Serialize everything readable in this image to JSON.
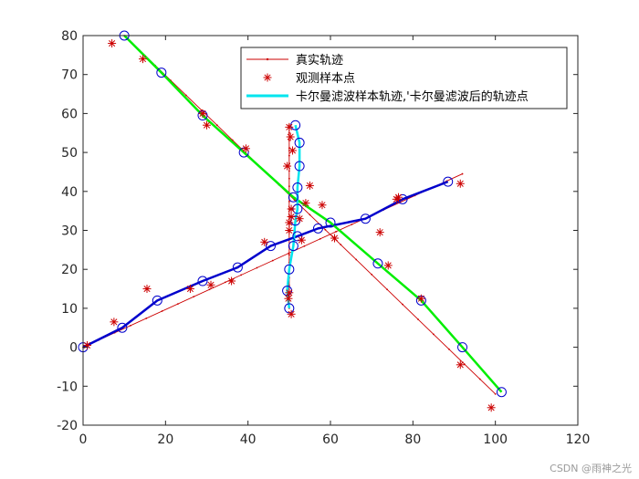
{
  "chart_data": {
    "type": "line",
    "xlim": [
      0,
      120
    ],
    "ylim": [
      -20,
      80
    ],
    "xticks": [
      0,
      20,
      40,
      60,
      80,
      100,
      120
    ],
    "yticks": [
      -20,
      -10,
      0,
      10,
      20,
      30,
      40,
      50,
      60,
      70,
      80
    ],
    "grid": false,
    "legend_position": "top-right",
    "series": [
      {
        "name": "真实轨迹",
        "style": "line-dot",
        "color": "#cc0000",
        "tracks": [
          {
            "x": [
              0,
              92
            ],
            "y": [
              0,
              44.5
            ]
          },
          {
            "x": [
              10,
              100
            ],
            "y": [
              80,
              -12
            ]
          },
          {
            "x": [
              50,
              50
            ],
            "y": [
              10,
              57
            ]
          }
        ]
      },
      {
        "name": "观测样本点",
        "style": "star-markers",
        "color": "#cc0000",
        "points": {
          "x": [
            1,
            7,
            14.5,
            26,
            30,
            31,
            36,
            44,
            49.5,
            50,
            50.3,
            50.8,
            53,
            54,
            55,
            58,
            61,
            7.5,
            15.5,
            29,
            39.5,
            50,
            50.5,
            50,
            50.5,
            52.5,
            49.8,
            50,
            50.5,
            72,
            76,
            74,
            82,
            91.5,
            99,
            76.5,
            91.5
          ],
          "y": [
            0.5,
            78,
            74,
            15,
            57,
            16,
            17,
            27,
            46.5,
            56.5,
            54,
            50.5,
            27.5,
            37,
            41.5,
            36.5,
            28,
            6.5,
            15,
            60,
            51,
            32,
            33.5,
            14,
            8.5,
            33,
            12.5,
            30,
            35.5,
            29.5,
            38,
            21,
            12.5,
            -4.5,
            -15.5,
            38.5,
            42
          ]
        }
      },
      {
        "name": "卡尔曼滤波样本轨迹,'卡尔曼滤波后的轨迹点",
        "style": "line-circle",
        "tracks": [
          {
            "color": "#0000cc",
            "x": [
              0,
              9.5,
              18,
              29,
              37.5,
              45.5,
              52,
              57,
              68.5,
              77.5,
              88.5
            ],
            "y": [
              0,
              5,
              12,
              17,
              20.5,
              26,
              28.5,
              30.5,
              33,
              38,
              42.5
            ]
          },
          {
            "color": "#00ee00",
            "x": [
              10,
              19,
              29,
              39,
              51,
              60,
              71.5,
              82,
              92,
              101.5
            ],
            "y": [
              80,
              70.5,
              59.5,
              50,
              38.5,
              32,
              21.5,
              12,
              0,
              -11.5
            ]
          },
          {
            "color": "#00e5ee",
            "x": [
              50,
              49.5,
              50,
              51,
              51.5,
              52,
              52,
              52.5,
              52.5,
              51.5
            ],
            "y": [
              10,
              14.5,
              20,
              26,
              32.5,
              35.5,
              41,
              46.5,
              52.5,
              57
            ]
          }
        ]
      }
    ]
  },
  "watermark": "CSDN @雨神之光"
}
